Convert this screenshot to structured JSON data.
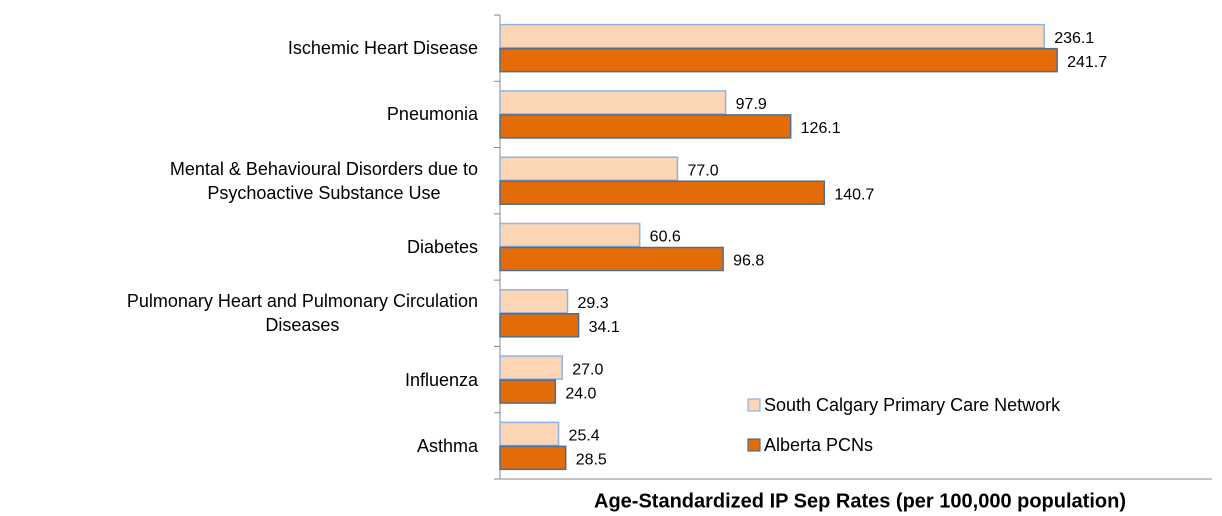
{
  "chart_data": {
    "type": "hbar",
    "x_label": "Age-Standardized IP Sep Rates (per 100,000 population)",
    "categories": [
      "Ischemic Heart Disease",
      "Pneumonia",
      "Mental & Behavioural Disorders due to\nPsychoactive Substance Use",
      "Diabetes",
      "Pulmonary Heart and Pulmonary Circulation\nDiseases",
      "Influenza",
      "Asthma"
    ],
    "series": [
      {
        "name": "South Calgary Primary Care Network",
        "color": "#fcd5b5",
        "edge": "#8eb4e3",
        "values": [
          236.1,
          97.9,
          77.0,
          60.6,
          29.3,
          27.0,
          25.4
        ],
        "value_labels": [
          "236.1",
          "97.9",
          "77.0",
          "60.6",
          "29.3",
          "27.0",
          "25.4"
        ]
      },
      {
        "name": "Alberta PCNs",
        "color": "#e36c09",
        "edge": "#4f6d8f",
        "values": [
          241.7,
          126.1,
          140.7,
          96.8,
          34.1,
          24.0,
          28.5
        ],
        "value_labels": [
          "241.7",
          "126.1",
          "140.7",
          "96.8",
          "34.1",
          "24.0",
          "28.5"
        ]
      }
    ],
    "xlim": [
      0,
      300
    ],
    "legend": "lower right"
  }
}
